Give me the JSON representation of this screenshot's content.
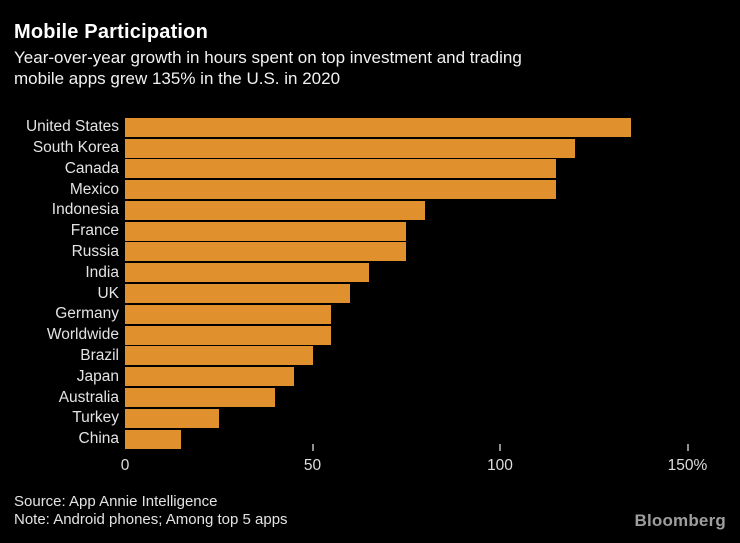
{
  "header": {
    "title": "Mobile Participation",
    "subtitle_line1": "Year-over-year growth in hours spent on top investment and trading",
    "subtitle_line2": "mobile apps grew 135% in the U.S. in 2020"
  },
  "chart_data": {
    "type": "bar",
    "orientation": "horizontal",
    "title": "Mobile Participation",
    "subtitle": "Year-over-year growth in hours spent on top investment and trading mobile apps grew 135% in the U.S. in 2020",
    "categories": [
      "United States",
      "South Korea",
      "Canada",
      "Mexico",
      "Indonesia",
      "France",
      "Russia",
      "India",
      "UK",
      "Germany",
      "Worldwide",
      "Brazil",
      "Japan",
      "Australia",
      "Turkey",
      "China"
    ],
    "values": [
      135,
      120,
      115,
      115,
      80,
      75,
      75,
      65,
      60,
      55,
      55,
      50,
      45,
      40,
      25,
      15
    ],
    "unit": "%",
    "xlabel": "",
    "ylabel": "",
    "axis": {
      "ticks": [
        0,
        50,
        100,
        150
      ],
      "tick_labels": [
        "0",
        "50",
        "100",
        "150%"
      ],
      "max": 160
    },
    "grid": false,
    "legend": false,
    "bar_color": "#e0912e",
    "background_color": "#000000",
    "label_color": "#e3e3e3"
  },
  "footer": {
    "source": "Source: App Annie Intelligence",
    "note": "Note: Android phones; Among top 5 apps",
    "brand": "Bloomberg"
  }
}
